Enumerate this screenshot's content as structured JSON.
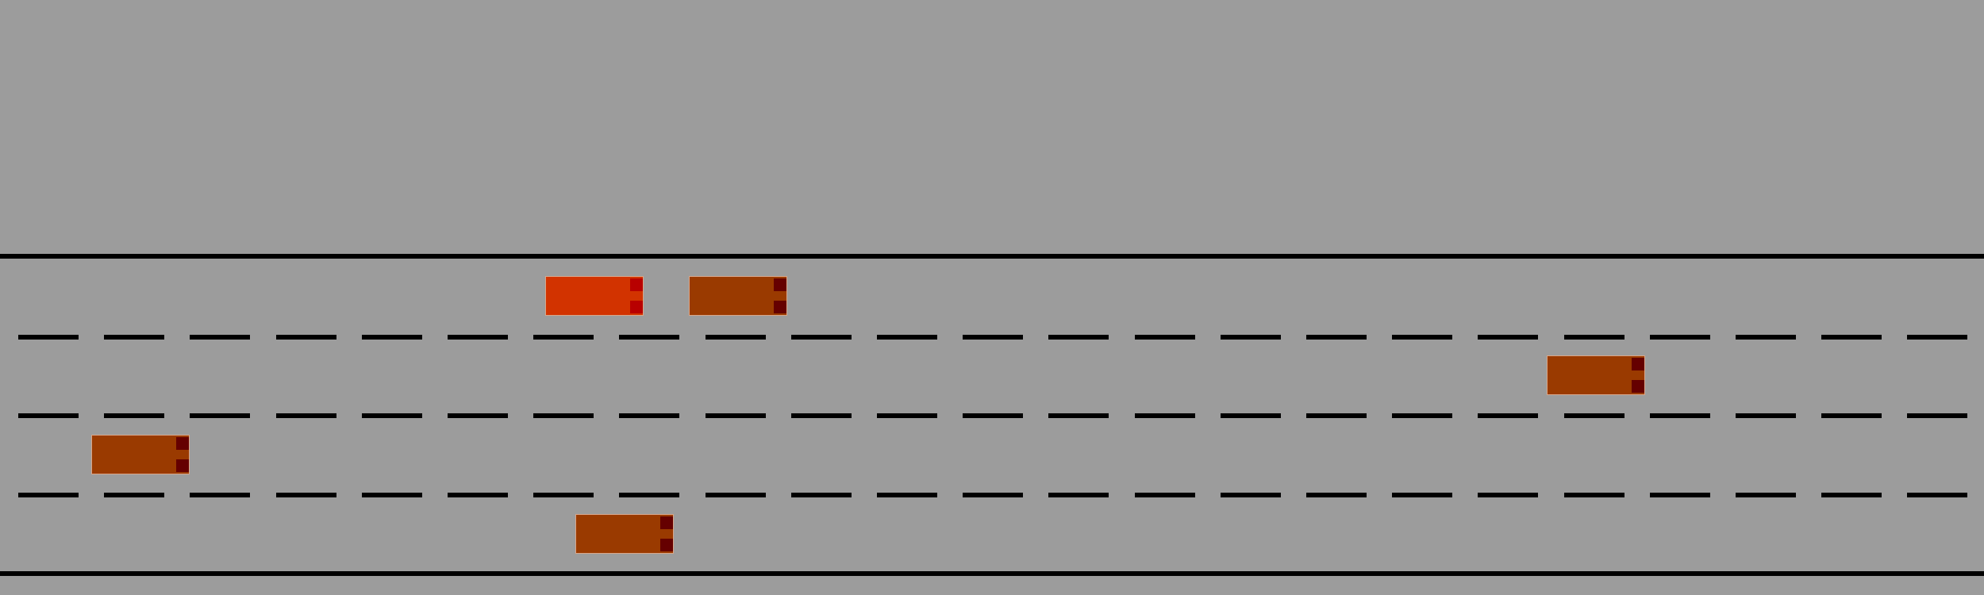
{
  "scene": {
    "type": "highway-driving-simulation",
    "lanes": 4,
    "colors": {
      "road": "#9c9c9c",
      "lane_marking": "#000000",
      "ego_vehicle": "#d23300",
      "ego_lights": "#b80000",
      "other_vehicle": "#9a3a00",
      "other_lights": "#650000"
    },
    "vehicles": [
      {
        "id": "ego",
        "lane": 1,
        "heading": "right"
      },
      {
        "id": "car-1",
        "lane": 1,
        "heading": "right"
      },
      {
        "id": "car-2",
        "lane": 2,
        "heading": "right"
      },
      {
        "id": "car-3",
        "lane": 3,
        "heading": "right"
      },
      {
        "id": "car-4",
        "lane": 4,
        "heading": "right"
      }
    ]
  }
}
